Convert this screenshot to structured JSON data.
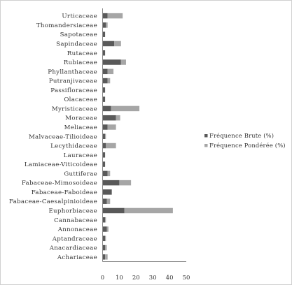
{
  "chart_data": {
    "type": "bar",
    "orientation": "horizontal",
    "stacked": true,
    "categories": [
      "Achariaceae",
      "Anacardiaceae",
      "Aptandraceae",
      "Annonaceae",
      "Cannabaceae",
      "Euphorbiaceae",
      "Fabaceae-Caesalpinioideae",
      "Fabaceae-Faboideae",
      "Fabaceae-Mimosoideae",
      "Guttiferae",
      "Lamiaceae-Viticoideae",
      "Lauraceae",
      "Lecythidaceae",
      "Malvaceae-Tilioideae",
      "Meliaceae",
      "Moraceae",
      "Myristicaceae",
      "Olacaceae",
      "Passifloraceae",
      "Putranjivaceae",
      "Phyllanthaceae",
      "Rubiaceae",
      "Rutaceae",
      "Sapindaceae",
      "Sapotaceae",
      "Thomandersiaceae",
      "Urticaceae"
    ],
    "series": [
      {
        "name": "Fréquence Brute (%)",
        "color": "#595959",
        "values": [
          1.5,
          1.5,
          1.5,
          2.5,
          1.5,
          13,
          2.5,
          5.5,
          10,
          3,
          1.5,
          1.5,
          2,
          1.5,
          3,
          8,
          5,
          1.5,
          1.5,
          3,
          3,
          11,
          1.5,
          7,
          1.5,
          2,
          3
        ]
      },
      {
        "name": "Fréquence Pondérée (%)",
        "color": "#a6a6a6",
        "values": [
          1.5,
          1,
          0.5,
          1,
          0.5,
          29,
          2,
          0,
          7,
          1.5,
          0,
          0,
          6,
          0.5,
          5,
          2.5,
          17,
          0,
          0,
          1.5,
          3.5,
          3,
          0,
          4,
          0,
          1,
          9
        ]
      }
    ],
    "xlim": [
      0,
      50
    ],
    "xticks": [
      "0",
      "10",
      "20",
      "30",
      "40",
      "50"
    ],
    "grid": false,
    "legend_position": "right"
  }
}
